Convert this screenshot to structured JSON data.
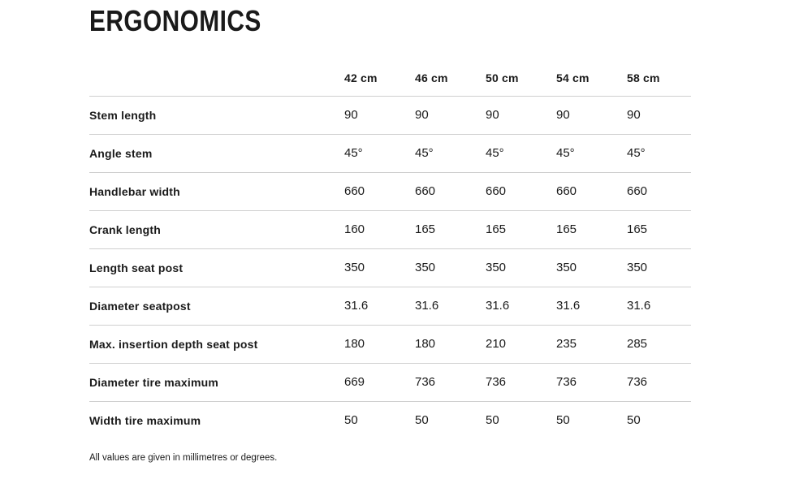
{
  "title": "ERGONOMICS",
  "table": {
    "columns": [
      "42 cm",
      "46 cm",
      "50 cm",
      "54 cm",
      "58 cm"
    ],
    "rows": [
      {
        "label": "Stem length",
        "values": [
          "90",
          "90",
          "90",
          "90",
          "90"
        ]
      },
      {
        "label": "Angle stem",
        "values": [
          "45°",
          "45°",
          "45°",
          "45°",
          "45°"
        ]
      },
      {
        "label": "Handlebar width",
        "values": [
          "660",
          "660",
          "660",
          "660",
          "660"
        ]
      },
      {
        "label": "Crank length",
        "values": [
          "160",
          "165",
          "165",
          "165",
          "165"
        ]
      },
      {
        "label": "Length seat post",
        "values": [
          "350",
          "350",
          "350",
          "350",
          "350"
        ]
      },
      {
        "label": "Diameter seatpost",
        "values": [
          "31.6",
          "31.6",
          "31.6",
          "31.6",
          "31.6"
        ]
      },
      {
        "label": "Max. insertion depth seat post",
        "values": [
          "180",
          "180",
          "210",
          "235",
          "285"
        ]
      },
      {
        "label": "Diameter tire maximum",
        "values": [
          "669",
          "736",
          "736",
          "736",
          "736"
        ]
      },
      {
        "label": "Width tire maximum",
        "values": [
          "50",
          "50",
          "50",
          "50",
          "50"
        ]
      }
    ]
  },
  "footnote": "All values are given in millimetres or degrees.",
  "colors": {
    "text": "#1a1a1a",
    "divider": "#cfcfcf",
    "background": "#ffffff"
  }
}
